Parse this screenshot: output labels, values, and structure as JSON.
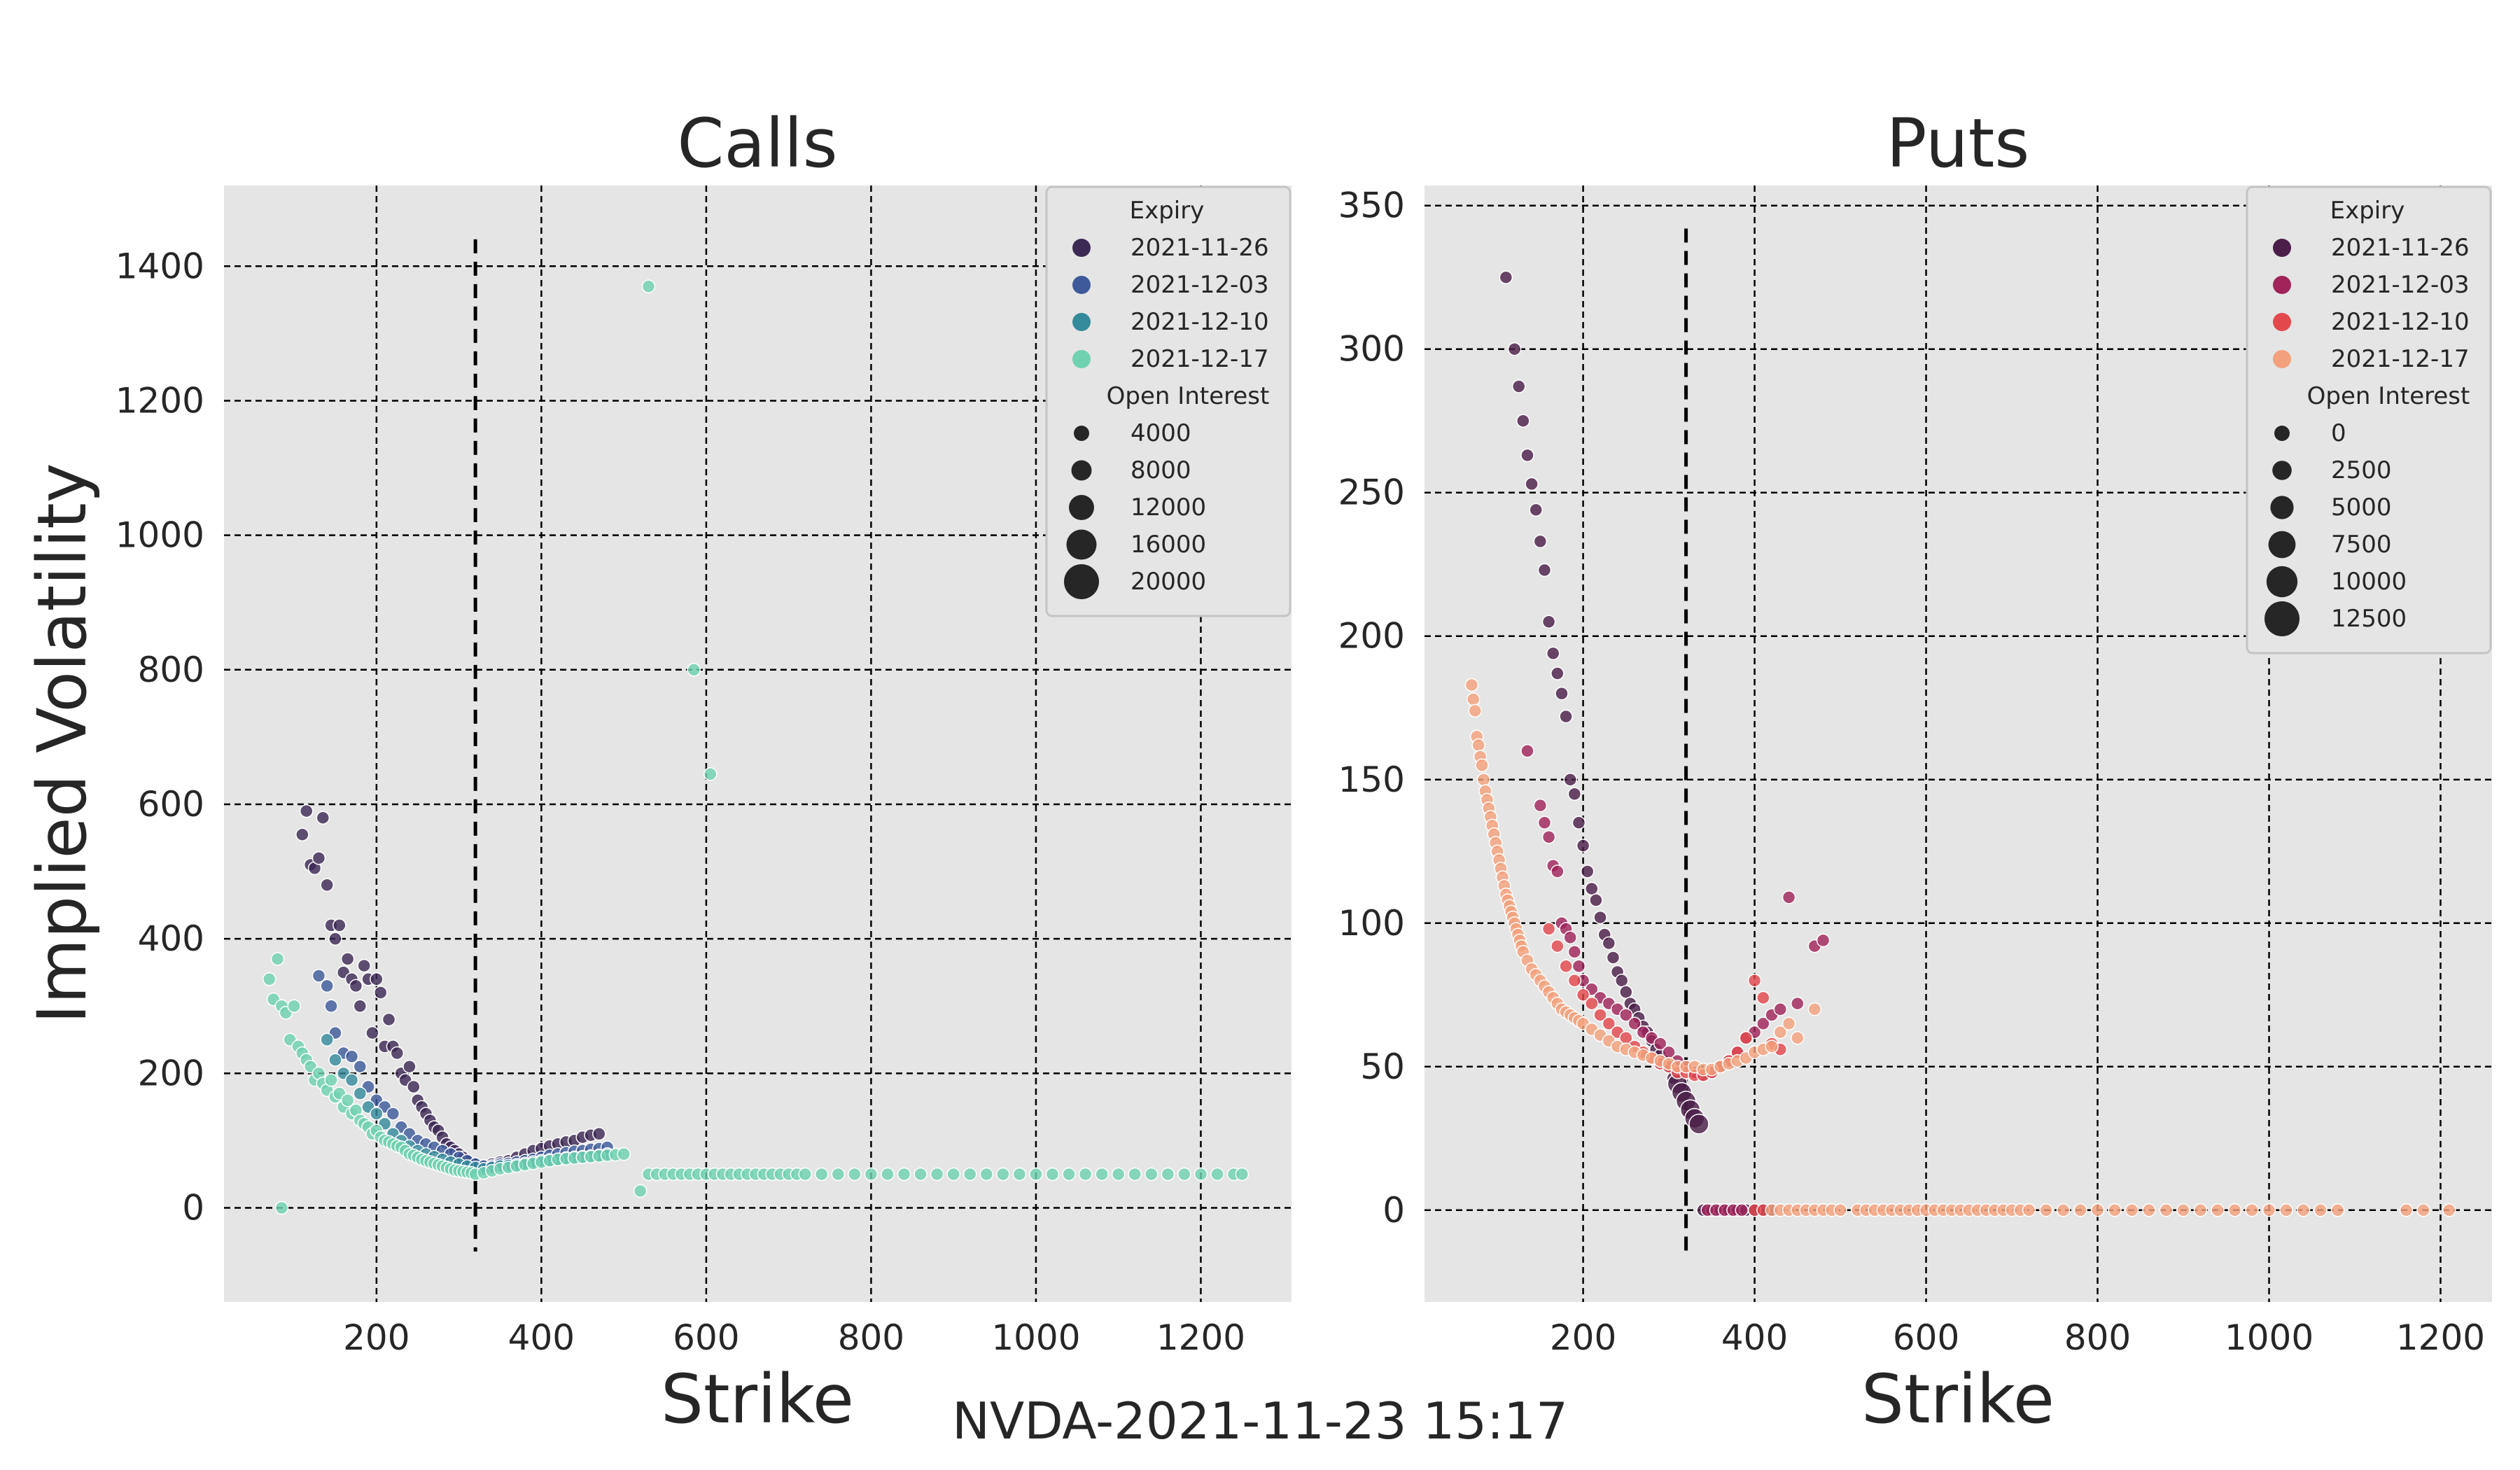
{
  "suptitle": "NVDA-2021-11-23 15:17",
  "chart_data": [
    {
      "type": "scatter",
      "title": "Calls",
      "xlabel": "Strike",
      "ylabel": "Implied Volatility",
      "xlim": [
        15,
        1310
      ],
      "ylim": [
        -140,
        1520
      ],
      "xticks": [
        200,
        400,
        600,
        800,
        1000,
        1200
      ],
      "yticks": [
        0,
        200,
        400,
        600,
        800,
        1000,
        1200,
        1400
      ],
      "grid": true,
      "underlying_price_line": {
        "x": 320,
        "y_range": [
          -65,
          1440
        ]
      },
      "legend": {
        "placement": "top-right",
        "hue_title": "Expiry",
        "size_title": "Open Interest",
        "size_entries": [
          "4000",
          "8000",
          "12000",
          "16000",
          "20000"
        ]
      },
      "series": [
        {
          "name": "2021-11-26",
          "color": "#3d2a54",
          "x": [
            110,
            115,
            120,
            125,
            130,
            135,
            140,
            145,
            150,
            155,
            160,
            165,
            170,
            175,
            180,
            185,
            190,
            195,
            200,
            205,
            210,
            215,
            220,
            225,
            230,
            235,
            240,
            245,
            250,
            255,
            260,
            265,
            270,
            275,
            280,
            285,
            290,
            295,
            300,
            305,
            310,
            320,
            330,
            340,
            350,
            360,
            370,
            380,
            390,
            400,
            410,
            420,
            430,
            440,
            450,
            460,
            470
          ],
          "y": [
            555,
            590,
            510,
            505,
            520,
            580,
            480,
            420,
            400,
            420,
            350,
            370,
            340,
            330,
            300,
            360,
            340,
            260,
            340,
            320,
            240,
            280,
            240,
            230,
            200,
            190,
            210,
            180,
            160,
            150,
            140,
            130,
            120,
            115,
            105,
            95,
            90,
            85,
            80,
            75,
            70,
            60,
            62,
            65,
            68,
            70,
            75,
            80,
            85,
            88,
            92,
            95,
            98,
            100,
            105,
            108,
            110
          ]
        },
        {
          "name": "2021-12-03",
          "color": "#3e5a9a",
          "x": [
            130,
            140,
            145,
            150,
            160,
            170,
            180,
            190,
            200,
            210,
            220,
            230,
            240,
            250,
            260,
            270,
            280,
            290,
            300,
            310,
            320,
            330,
            340,
            350,
            360,
            370,
            380,
            390,
            400,
            410,
            420,
            430,
            440,
            450,
            460,
            470,
            480
          ],
          "y": [
            345,
            330,
            300,
            260,
            230,
            225,
            210,
            180,
            160,
            150,
            140,
            120,
            110,
            100,
            95,
            90,
            85,
            80,
            75,
            70,
            65,
            62,
            62,
            65,
            66,
            68,
            70,
            72,
            75,
            78,
            80,
            82,
            84,
            85,
            87,
            88,
            90
          ]
        },
        {
          "name": "2021-12-10",
          "color": "#348a9b",
          "x": [
            140,
            150,
            160,
            170,
            180,
            190,
            200,
            210,
            220,
            230,
            240,
            250,
            260,
            270,
            280,
            290,
            300,
            310,
            320,
            330,
            340,
            350,
            360,
            370,
            380,
            390,
            400,
            410,
            420,
            430,
            440,
            450,
            460,
            470,
            480
          ],
          "y": [
            250,
            220,
            200,
            190,
            170,
            150,
            140,
            125,
            110,
            100,
            92,
            85,
            80,
            76,
            72,
            68,
            65,
            62,
            60,
            58,
            60,
            62,
            63,
            64,
            66,
            68,
            70,
            71,
            72,
            74,
            75,
            76,
            77,
            78,
            80
          ]
        },
        {
          "name": "2021-12-17",
          "color": "#6fd1b0",
          "x": [
            70,
            75,
            80,
            85,
            90,
            95,
            100,
            105,
            110,
            115,
            120,
            125,
            130,
            135,
            140,
            145,
            150,
            155,
            160,
            165,
            170,
            175,
            180,
            185,
            190,
            195,
            200,
            205,
            210,
            215,
            220,
            225,
            230,
            235,
            240,
            245,
            250,
            255,
            260,
            265,
            270,
            275,
            280,
            285,
            290,
            295,
            300,
            305,
            310,
            315,
            320,
            330,
            340,
            350,
            360,
            370,
            380,
            390,
            400,
            410,
            420,
            430,
            440,
            450,
            460,
            470,
            480,
            490,
            500,
            520,
            530,
            540,
            550,
            560,
            570,
            580,
            590,
            600,
            610,
            620,
            630,
            640,
            650,
            660,
            670,
            680,
            690,
            700,
            710,
            720,
            740,
            760,
            780,
            800,
            820,
            840,
            860,
            880,
            900,
            920,
            940,
            960,
            980,
            1000,
            1020,
            1040,
            1060,
            1080,
            1100,
            1120,
            1140,
            1160,
            1180,
            1200,
            1220,
            1240,
            1250,
            530,
            585,
            605,
            85
          ],
          "y": [
            340,
            310,
            370,
            300,
            290,
            250,
            300,
            240,
            230,
            220,
            210,
            190,
            200,
            185,
            175,
            190,
            165,
            170,
            150,
            160,
            140,
            145,
            130,
            125,
            120,
            110,
            115,
            105,
            100,
            98,
            95,
            92,
            90,
            85,
            80,
            78,
            75,
            72,
            70,
            68,
            66,
            64,
            62,
            60,
            58,
            56,
            55,
            54,
            53,
            52,
            50,
            52,
            55,
            58,
            60,
            62,
            64,
            66,
            68,
            70,
            72,
            73,
            74,
            75,
            76,
            77,
            78,
            79,
            80,
            25,
            50,
            50,
            50,
            50,
            50,
            50,
            50,
            50,
            50,
            50,
            50,
            50,
            50,
            50,
            50,
            50,
            50,
            50,
            50,
            50,
            50,
            50,
            50,
            50,
            50,
            50,
            50,
            50,
            50,
            50,
            50,
            50,
            50,
            50,
            50,
            50,
            50,
            50,
            50,
            50,
            50,
            50,
            50,
            50,
            50,
            50,
            50,
            1370,
            800,
            645,
            0
          ]
        }
      ]
    },
    {
      "type": "scatter",
      "title": "Puts",
      "xlabel": "Strike",
      "ylabel": "",
      "xlim": [
        15,
        1260
      ],
      "ylim": [
        -32,
        357
      ],
      "xticks": [
        200,
        400,
        600,
        800,
        1000,
        1200
      ],
      "yticks": [
        0,
        50,
        100,
        150,
        200,
        250,
        300,
        350
      ],
      "grid": true,
      "underlying_price_line": {
        "x": 320,
        "y_range": [
          -15,
          342
        ]
      },
      "legend": {
        "placement": "top-right",
        "hue_title": "Expiry",
        "size_title": "Open Interest",
        "size_entries": [
          "0",
          "2500",
          "5000",
          "7500",
          "10000",
          "12500"
        ]
      },
      "series": [
        {
          "name": "2021-11-26",
          "color": "#4a1e48",
          "x": [
            110,
            120,
            125,
            130,
            135,
            140,
            145,
            150,
            155,
            160,
            165,
            170,
            175,
            180,
            185,
            190,
            195,
            200,
            205,
            210,
            215,
            220,
            225,
            230,
            235,
            240,
            245,
            250,
            255,
            260,
            265,
            270,
            275,
            280,
            285,
            290,
            295,
            300,
            305,
            310,
            315,
            320,
            325,
            330,
            335,
            340,
            350,
            360,
            370,
            380,
            390,
            400,
            410,
            420
          ],
          "y": [
            325,
            300,
            287,
            275,
            263,
            253,
            244,
            233,
            223,
            205,
            194,
            187,
            180,
            172,
            150,
            145,
            135,
            127,
            118,
            112,
            108,
            102,
            96,
            93,
            88,
            83,
            80,
            76,
            72,
            70,
            67,
            64,
            62,
            59,
            56,
            54,
            52,
            50,
            46,
            44,
            41,
            38,
            35,
            32,
            30,
            0,
            0,
            0,
            0,
            0,
            0,
            0,
            0,
            0
          ]
        },
        {
          "name": "2021-12-03",
          "color": "#a0245a",
          "x": [
            135,
            150,
            155,
            160,
            165,
            170,
            175,
            180,
            185,
            190,
            195,
            200,
            210,
            220,
            230,
            240,
            250,
            260,
            270,
            280,
            290,
            300,
            310,
            320,
            330,
            340,
            350,
            360,
            370,
            380,
            390,
            400,
            410,
            420,
            430,
            440,
            450,
            470,
            480,
            345,
            355,
            365,
            375,
            385
          ],
          "y": [
            160,
            141,
            135,
            130,
            120,
            118,
            100,
            98,
            95,
            90,
            85,
            80,
            77,
            74,
            72,
            70,
            68,
            65,
            62,
            60,
            58,
            55,
            52,
            50,
            48,
            47,
            48,
            50,
            52,
            55,
            60,
            62,
            65,
            68,
            70,
            109,
            72,
            92,
            94,
            0,
            0,
            0,
            0,
            0
          ]
        },
        {
          "name": "2021-12-10",
          "color": "#e3484d",
          "x": [
            160,
            170,
            180,
            190,
            200,
            210,
            220,
            230,
            240,
            250,
            260,
            270,
            280,
            290,
            300,
            310,
            320,
            330,
            340,
            350,
            360,
            370,
            380,
            390,
            400,
            410,
            420,
            430,
            400,
            410
          ],
          "y": [
            98,
            92,
            85,
            80,
            75,
            72,
            68,
            65,
            62,
            60,
            57,
            55,
            53,
            51,
            50,
            48,
            48,
            47,
            47,
            48,
            50,
            52,
            55,
            60,
            80,
            74,
            58,
            56,
            0,
            0
          ]
        },
        {
          "name": "2021-12-17",
          "color": "#f3a17c",
          "x": [
            70,
            72,
            74,
            76,
            78,
            80,
            82,
            84,
            86,
            88,
            90,
            92,
            94,
            96,
            98,
            100,
            102,
            104,
            106,
            108,
            110,
            112,
            114,
            116,
            118,
            120,
            122,
            124,
            126,
            128,
            130,
            135,
            140,
            145,
            150,
            155,
            160,
            165,
            170,
            175,
            180,
            185,
            190,
            195,
            200,
            210,
            220,
            230,
            240,
            250,
            260,
            270,
            280,
            290,
            300,
            310,
            320,
            330,
            340,
            350,
            360,
            370,
            380,
            390,
            400,
            410,
            420,
            430,
            440,
            450,
            470,
            420,
            430,
            440,
            450,
            460,
            470,
            480,
            490,
            500,
            520,
            530,
            540,
            550,
            560,
            570,
            580,
            590,
            600,
            610,
            620,
            630,
            640,
            650,
            660,
            670,
            680,
            690,
            700,
            710,
            720,
            740,
            760,
            780,
            800,
            820,
            840,
            860,
            880,
            900,
            920,
            940,
            960,
            980,
            1000,
            1020,
            1040,
            1060,
            1080,
            1160,
            1180,
            1210
          ],
          "y": [
            183,
            178,
            174,
            165,
            162,
            158,
            155,
            150,
            146,
            143,
            140,
            137,
            134,
            131,
            128,
            125,
            122,
            119,
            116,
            113,
            110,
            108,
            106,
            104,
            102,
            100,
            98,
            96,
            94,
            92,
            90,
            87,
            84,
            82,
            80,
            78,
            76,
            74,
            72,
            70,
            69,
            68,
            67,
            66,
            65,
            63,
            61,
            59,
            57,
            56,
            55,
            54,
            53,
            52,
            51,
            50,
            50,
            50,
            49,
            49,
            50,
            51,
            52,
            53,
            55,
            56,
            57,
            62,
            65,
            60,
            70,
            0,
            0,
            0,
            0,
            0,
            0,
            0,
            0,
            0,
            0,
            0,
            0,
            0,
            0,
            0,
            0,
            0,
            0,
            0,
            0,
            0,
            0,
            0,
            0,
            0,
            0,
            0,
            0,
            0,
            0,
            0,
            0,
            0,
            0,
            0,
            0,
            0,
            0,
            0,
            0,
            0,
            0,
            0,
            0,
            0,
            0,
            0,
            0,
            0,
            0,
            0
          ]
        }
      ]
    }
  ]
}
